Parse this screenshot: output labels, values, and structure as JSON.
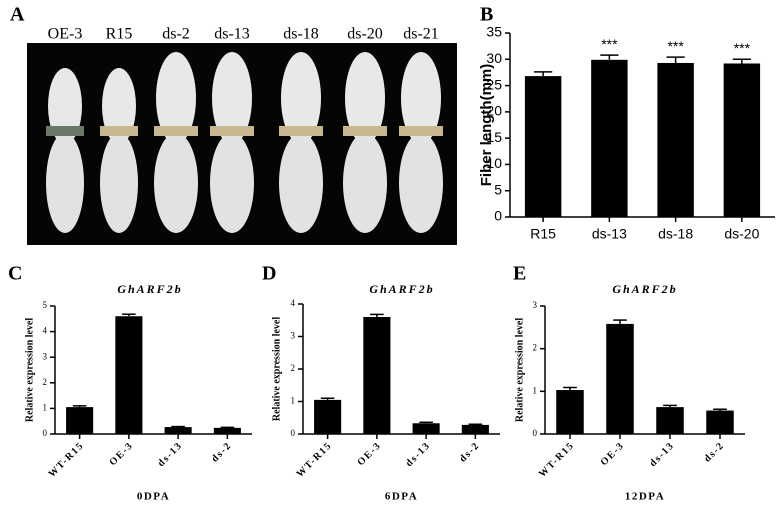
{
  "photo": {
    "panel": "A",
    "samples": [
      "OE-3",
      "R15",
      "ds-2",
      "ds-13",
      "ds-18",
      "ds-20",
      "ds-21"
    ]
  },
  "chart_data": [
    {
      "type": "bar",
      "panel": "B",
      "y_label": "Fiber length(mm)",
      "color": "#000000",
      "categories": [
        "R15",
        "ds-13",
        "ds-18",
        "ds-20"
      ],
      "values": [
        26.8,
        29.9,
        29.3,
        29.2
      ],
      "errors": [
        0.8,
        0.9,
        1.1,
        0.8
      ],
      "significance": [
        null,
        "***",
        "***",
        "***"
      ],
      "ylim": [
        0,
        35
      ],
      "yticks": [
        0,
        5,
        10,
        15,
        20,
        25,
        30,
        35
      ]
    },
    {
      "type": "bar",
      "panel": "C",
      "title": "GhARF2b",
      "y_label": "Relative expression level",
      "x_label": "0DPA",
      "color": "#000000",
      "categories": [
        "WT-R15",
        "OE-3",
        "ds-13",
        "ds-2"
      ],
      "values": [
        1.05,
        4.6,
        0.27,
        0.24
      ],
      "errors": [
        0.05,
        0.08,
        0.02,
        0.02
      ],
      "ylim": [
        0,
        5
      ],
      "yticks": [
        0,
        1,
        2,
        3,
        4,
        5
      ]
    },
    {
      "type": "bar",
      "panel": "D",
      "title": "GhARF2b",
      "y_label": "Relative expression level",
      "x_label": "6DPA",
      "color": "#000000",
      "categories": [
        "WT-R15",
        "OE-3",
        "ds-13",
        "ds-2"
      ],
      "values": [
        1.05,
        3.6,
        0.33,
        0.28
      ],
      "errors": [
        0.05,
        0.08,
        0.03,
        0.02
      ],
      "ylim": [
        0,
        4
      ],
      "yticks": [
        0,
        1,
        2,
        3,
        4
      ]
    },
    {
      "type": "bar",
      "panel": "E",
      "title": "GhARF2b",
      "y_label": "Relative expression level",
      "x_label": "12DPA",
      "color": "#000000",
      "categories": [
        "WT-R15",
        "OE-3",
        "ds-13",
        "ds-2"
      ],
      "values": [
        1.03,
        2.58,
        0.63,
        0.55
      ],
      "errors": [
        0.06,
        0.09,
        0.04,
        0.03
      ],
      "ylim": [
        0,
        3
      ],
      "yticks": [
        0,
        1,
        2,
        3
      ]
    }
  ]
}
